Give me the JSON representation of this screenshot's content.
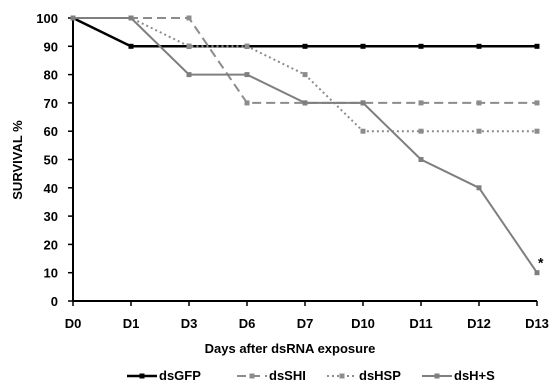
{
  "chart_data": {
    "type": "line",
    "categories": [
      "D0",
      "D1",
      "D3",
      "D6",
      "D7",
      "D10",
      "D11",
      "D12",
      "D13"
    ],
    "xlabel": "Days after dsRNA exposure",
    "ylabel": "SURVIVAL %",
    "ylim": [
      0,
      100
    ],
    "yticks": [
      0,
      10,
      20,
      30,
      40,
      50,
      60,
      70,
      80,
      90,
      100
    ],
    "grid": false,
    "legend_position": "bottom",
    "series": [
      {
        "name": "dsGFP",
        "color": "#000000",
        "line_style": "solid",
        "values": [
          100,
          90,
          90,
          90,
          90,
          90,
          90,
          90,
          90
        ]
      },
      {
        "name": "dsSHI",
        "color": "#8c8c8c",
        "line_style": "dashed",
        "values": [
          100,
          100,
          100,
          70,
          70,
          70,
          70,
          70,
          70
        ]
      },
      {
        "name": "dsHSP",
        "color": "#8c8c8c",
        "line_style": "dotted",
        "values": [
          100,
          100,
          90,
          90,
          80,
          60,
          60,
          60,
          60
        ]
      },
      {
        "name": "dsH+S",
        "color": "#7f7f7f",
        "line_style": "solid",
        "values": [
          100,
          100,
          80,
          80,
          70,
          70,
          50,
          40,
          10
        ]
      }
    ],
    "annotations": [
      {
        "text": "*",
        "category": "D13",
        "value": 10
      }
    ]
  }
}
